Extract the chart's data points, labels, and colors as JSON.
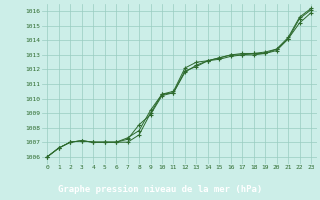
{
  "hours": [
    0,
    1,
    2,
    3,
    4,
    5,
    6,
    7,
    8,
    9,
    10,
    11,
    12,
    13,
    14,
    15,
    16,
    17,
    18,
    19,
    20,
    21,
    22,
    23
  ],
  "series1": [
    1006.0,
    1006.6,
    1007.0,
    1007.1,
    1007.0,
    1007.0,
    1007.0,
    1007.0,
    1007.5,
    1009.0,
    1010.3,
    1010.5,
    1012.1,
    1012.5,
    1012.6,
    1012.8,
    1013.0,
    1013.1,
    1013.1,
    1013.2,
    1013.4,
    1014.2,
    1015.6,
    1016.2
  ],
  "series2": [
    1006.0,
    1006.6,
    1007.0,
    1007.1,
    1007.0,
    1007.0,
    1007.0,
    1007.2,
    1008.2,
    1008.9,
    1010.2,
    1010.4,
    1011.8,
    1012.3,
    1012.6,
    1012.7,
    1012.9,
    1013.0,
    1013.0,
    1013.1,
    1013.3,
    1014.1,
    1015.2,
    1015.9
  ],
  "series3": [
    1006.0,
    1006.6,
    1007.0,
    1007.1,
    1007.0,
    1007.0,
    1007.0,
    1007.3,
    1007.8,
    1009.2,
    1010.3,
    1010.4,
    1011.9,
    1012.2,
    1012.6,
    1012.8,
    1013.0,
    1013.0,
    1013.1,
    1013.1,
    1013.4,
    1014.1,
    1015.5,
    1016.1
  ],
  "line_color": "#2d6a2d",
  "bg_color": "#cceee8",
  "grid_color": "#99ccc0",
  "xlabel": "Graphe pression niveau de la mer (hPa)",
  "xlabel_bg": "#2d6a2d",
  "xlabel_fg": "#ffffff",
  "ylim": [
    1005.5,
    1016.5
  ],
  "yticks": [
    1006,
    1007,
    1008,
    1009,
    1010,
    1011,
    1012,
    1013,
    1014,
    1015,
    1016
  ]
}
